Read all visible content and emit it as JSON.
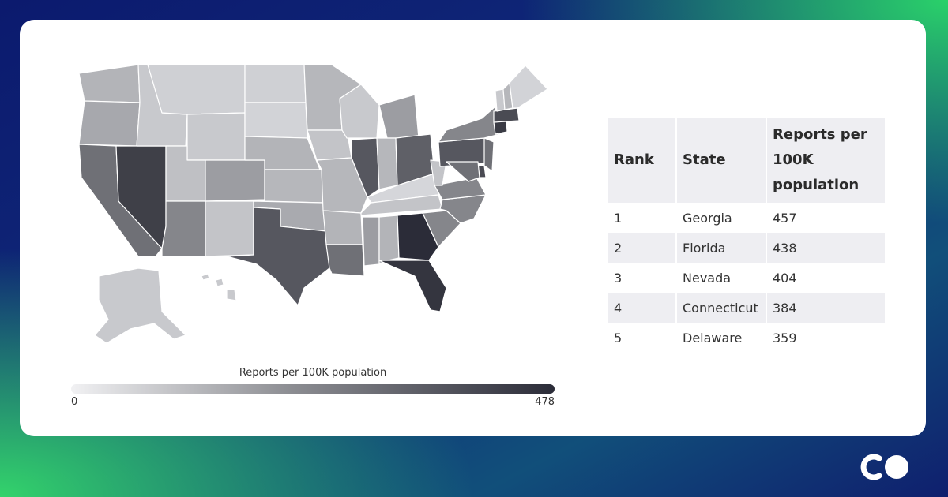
{
  "map": {
    "legend_title": "Reports per 100K population",
    "legend_min": "0",
    "legend_max": "478",
    "color_scale": [
      "#f1f1f3",
      "#8d8e93",
      "#2b2c38"
    ]
  },
  "table": {
    "headers": [
      "Rank",
      "State",
      "Reports per 100K population"
    ],
    "rows": [
      {
        "rank": "1",
        "state": "Georgia",
        "value": "457"
      },
      {
        "rank": "2",
        "state": "Florida",
        "value": "438"
      },
      {
        "rank": "3",
        "state": "Nevada",
        "value": "404"
      },
      {
        "rank": "4",
        "state": "Connecticut",
        "value": "384"
      },
      {
        "rank": "5",
        "state": "Delaware",
        "value": "359"
      }
    ]
  },
  "brand": {
    "logo": "co-logo"
  }
}
